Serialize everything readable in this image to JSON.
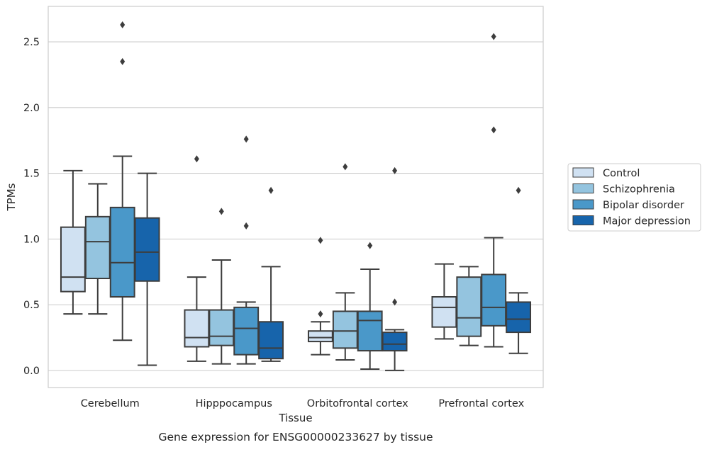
{
  "chart_data": {
    "type": "boxplot",
    "title": "",
    "caption": "Gene expression for ENSG00000233627 by tissue",
    "xlabel": "Tissue",
    "ylabel": "TPMs",
    "ylim": [
      -0.13,
      2.77
    ],
    "yticks": [
      0.0,
      0.5,
      1.0,
      1.5,
      2.0,
      2.5
    ],
    "ytick_labels": [
      "0.0",
      "0.5",
      "1.0",
      "1.5",
      "2.0",
      "2.5"
    ],
    "grid": "horizontal",
    "legend_position": "right",
    "categories": [
      "Cerebellum",
      "Hipppocampus",
      "Orbitofrontal cortex",
      "Prefrontal cortex"
    ],
    "series": [
      {
        "name": "Control",
        "color": "#d0e1f2",
        "boxes": [
          {
            "whisker_low": 0.43,
            "q1": 0.6,
            "median": 0.71,
            "q3": 1.09,
            "whisker_high": 1.52,
            "outliers": []
          },
          {
            "whisker_low": 0.07,
            "q1": 0.18,
            "median": 0.25,
            "q3": 0.46,
            "whisker_high": 0.71,
            "outliers": [
              1.61
            ]
          },
          {
            "whisker_low": 0.12,
            "q1": 0.22,
            "median": 0.25,
            "q3": 0.3,
            "whisker_high": 0.37,
            "outliers": [
              0.99,
              0.43
            ]
          },
          {
            "whisker_low": 0.24,
            "q1": 0.33,
            "median": 0.48,
            "q3": 0.56,
            "whisker_high": 0.81,
            "outliers": []
          }
        ]
      },
      {
        "name": "Schizophrenia",
        "color": "#94c4df",
        "boxes": [
          {
            "whisker_low": 0.43,
            "q1": 0.7,
            "median": 0.98,
            "q3": 1.17,
            "whisker_high": 1.42,
            "outliers": []
          },
          {
            "whisker_low": 0.05,
            "q1": 0.19,
            "median": 0.26,
            "q3": 0.46,
            "whisker_high": 0.84,
            "outliers": [
              1.21
            ]
          },
          {
            "whisker_low": 0.08,
            "q1": 0.17,
            "median": 0.3,
            "q3": 0.45,
            "whisker_high": 0.59,
            "outliers": [
              1.55
            ]
          },
          {
            "whisker_low": 0.19,
            "q1": 0.26,
            "median": 0.4,
            "q3": 0.71,
            "whisker_high": 0.79,
            "outliers": []
          }
        ]
      },
      {
        "name": "Bipolar disorder",
        "color": "#4a98c9",
        "boxes": [
          {
            "whisker_low": 0.23,
            "q1": 0.56,
            "median": 0.82,
            "q3": 1.24,
            "whisker_high": 1.63,
            "outliers": [
              2.63,
              2.35
            ]
          },
          {
            "whisker_low": 0.05,
            "q1": 0.12,
            "median": 0.32,
            "q3": 0.48,
            "whisker_high": 0.52,
            "outliers": [
              1.76,
              1.1
            ]
          },
          {
            "whisker_low": 0.01,
            "q1": 0.15,
            "median": 0.38,
            "q3": 0.45,
            "whisker_high": 0.77,
            "outliers": [
              0.95
            ]
          },
          {
            "whisker_low": 0.18,
            "q1": 0.34,
            "median": 0.48,
            "q3": 0.73,
            "whisker_high": 1.01,
            "outliers": [
              2.54,
              1.83
            ]
          }
        ]
      },
      {
        "name": "Major depression",
        "color": "#1764ab",
        "boxes": [
          {
            "whisker_low": 0.04,
            "q1": 0.68,
            "median": 0.9,
            "q3": 1.16,
            "whisker_high": 1.5,
            "outliers": []
          },
          {
            "whisker_low": 0.07,
            "q1": 0.09,
            "median": 0.17,
            "q3": 0.37,
            "whisker_high": 0.79,
            "outliers": [
              1.37
            ]
          },
          {
            "whisker_low": 0.0,
            "q1": 0.15,
            "median": 0.2,
            "q3": 0.29,
            "whisker_high": 0.31,
            "outliers": [
              1.52,
              0.52
            ]
          },
          {
            "whisker_low": 0.13,
            "q1": 0.29,
            "median": 0.39,
            "q3": 0.52,
            "whisker_high": 0.59,
            "outliers": [
              1.37
            ]
          }
        ]
      }
    ]
  }
}
